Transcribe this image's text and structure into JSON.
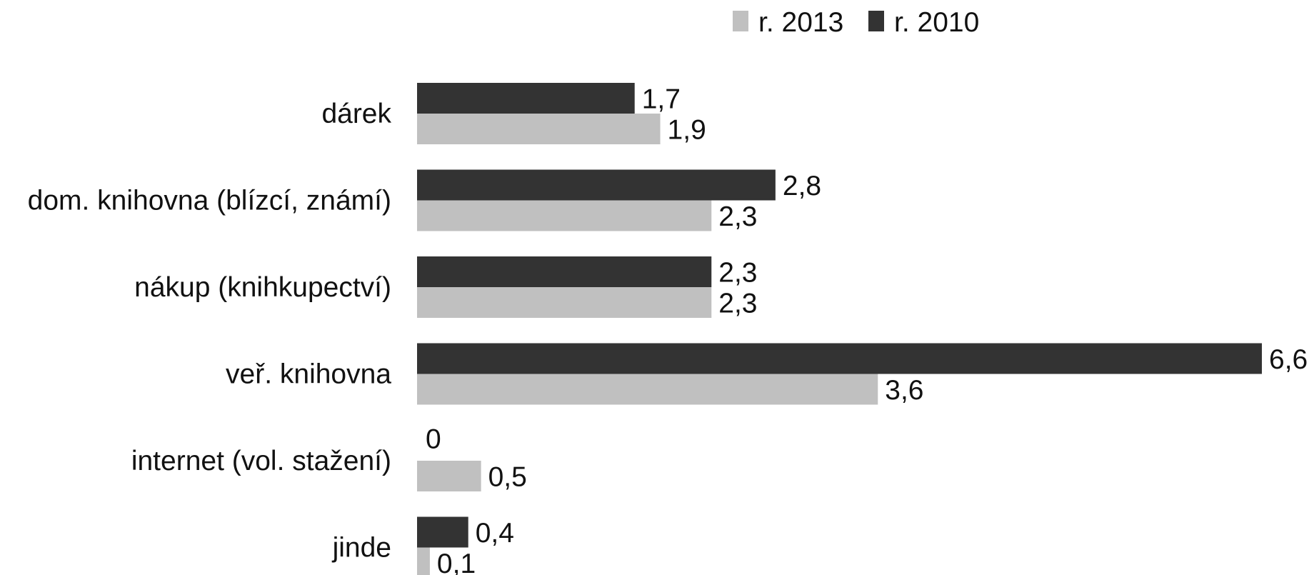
{
  "chart_data": {
    "type": "bar",
    "orientation": "horizontal",
    "categories": [
      "dárek",
      "dom. knihovna (blízcí, známí)",
      "nákup (knihkupectví)",
      "veř. knihovna",
      "internet (vol. stažení)",
      "jinde"
    ],
    "series": [
      {
        "name": "r. 2010",
        "color": "#333333",
        "values": [
          1.7,
          2.8,
          2.3,
          6.6,
          0,
          0.4
        ],
        "labels": [
          "1,7",
          "2,8",
          "2,3",
          "6,6",
          "0",
          "0,4"
        ]
      },
      {
        "name": "r. 2013",
        "color": "#c0c0c0",
        "values": [
          1.9,
          2.3,
          2.3,
          3.6,
          0.5,
          0.1
        ],
        "labels": [
          "1,9",
          "2,3",
          "2,3",
          "3,6",
          "0,5",
          "0,1"
        ]
      }
    ],
    "legend_order": [
      "r. 2013",
      "r. 2010"
    ],
    "legend_position": "top",
    "xlim": [
      0,
      6.6
    ],
    "grid": false,
    "axes_visible": false
  }
}
